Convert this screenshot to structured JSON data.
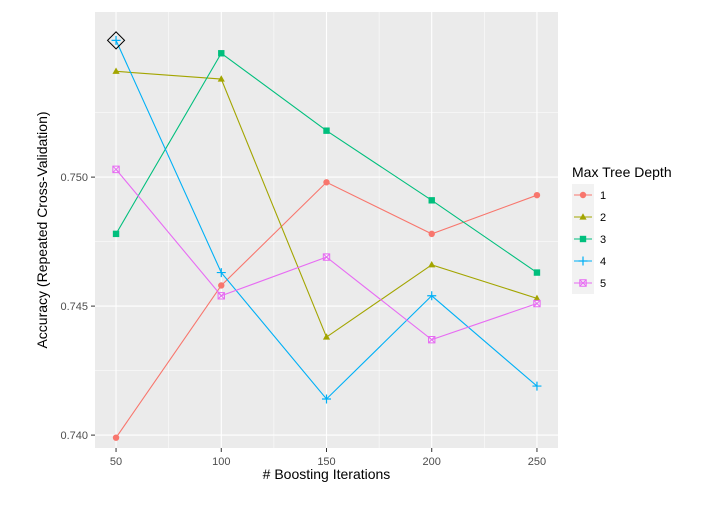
{
  "chart_data": {
    "type": "line",
    "xlabel": "# Boosting Iterations",
    "ylabel": "Accuracy (Repeated Cross-Validation)",
    "x": [
      50,
      100,
      150,
      200,
      250
    ],
    "xlim": [
      40,
      260
    ],
    "ylim": [
      0.7395,
      0.7564
    ],
    "x_ticks": [
      "50",
      "100",
      "150",
      "200",
      "250"
    ],
    "y_ticks": [
      "0.740",
      "0.745",
      "0.750"
    ],
    "y_tick_values": [
      0.74,
      0.745,
      0.75
    ],
    "grid": true,
    "legend": {
      "title": "Max Tree Depth",
      "placement": "right"
    },
    "highlight": {
      "series": "4",
      "x": 50,
      "y": 0.7553,
      "marker": "diamond"
    },
    "series": [
      {
        "name": "1",
        "color": "#F8766D",
        "marker": "circle",
        "values": [
          0.7399,
          0.7458,
          0.7498,
          0.7478,
          0.7493
        ]
      },
      {
        "name": "2",
        "color": "#A3A500",
        "marker": "triangle",
        "values": [
          0.7541,
          0.7538,
          0.7438,
          0.7466,
          0.7453
        ]
      },
      {
        "name": "3",
        "color": "#00BF7D",
        "marker": "square",
        "values": [
          0.7478,
          0.7548,
          0.7518,
          0.7491,
          0.7463
        ]
      },
      {
        "name": "4",
        "color": "#00B0F6",
        "marker": "plus",
        "values": [
          0.7553,
          0.7463,
          0.7414,
          0.7454,
          0.7419
        ]
      },
      {
        "name": "5",
        "color": "#E76BF3",
        "marker": "boxed-x",
        "values": [
          0.7503,
          0.7454,
          0.7469,
          0.7437,
          0.7451
        ]
      }
    ]
  }
}
